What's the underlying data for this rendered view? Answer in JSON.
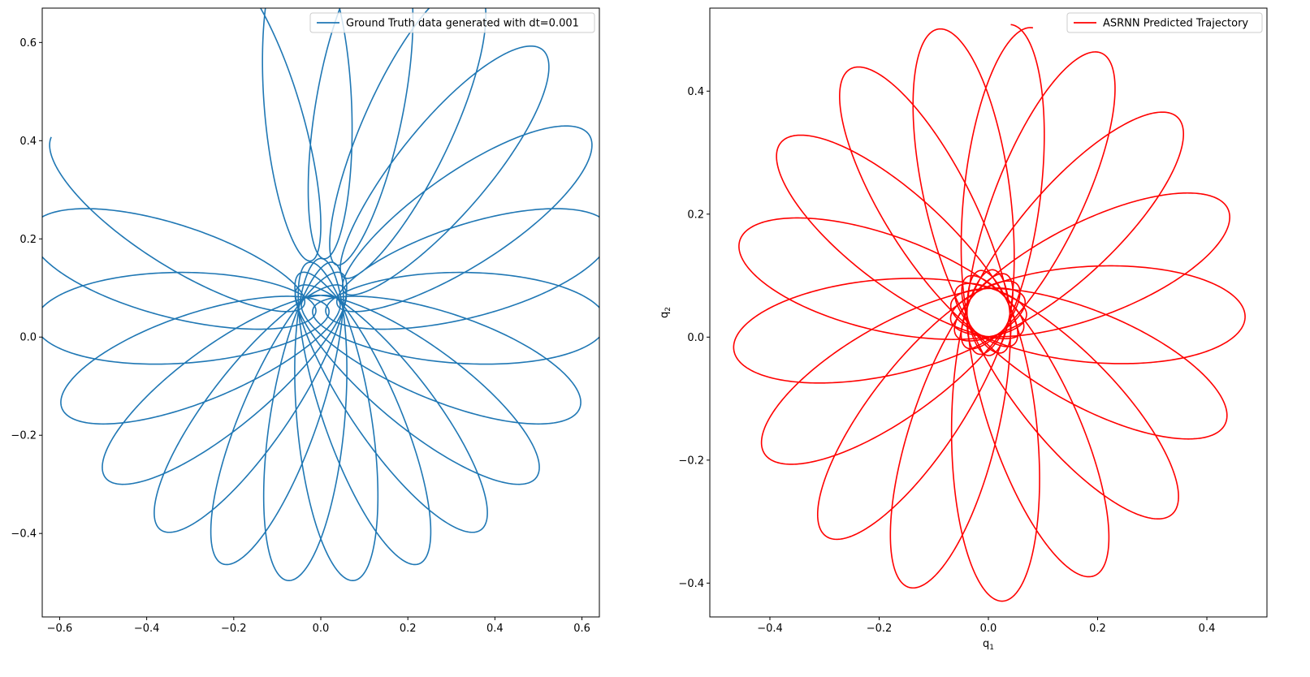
{
  "figure": {
    "background": "#ffffff"
  },
  "chart_data": [
    {
      "type": "line",
      "title": "",
      "xlabel": "",
      "ylabel": "",
      "xlim": [
        -0.64,
        0.64
      ],
      "ylim": [
        -0.57,
        0.67
      ],
      "xticks": [
        -0.6,
        -0.4,
        -0.2,
        0.0,
        0.2,
        0.4,
        0.6
      ],
      "xtick_labels": [
        "−0.6",
        "−0.4",
        "−0.2",
        "0.0",
        "0.2",
        "0.4",
        "0.6"
      ],
      "yticks": [
        -0.4,
        -0.2,
        0.0,
        0.2,
        0.4,
        0.6
      ],
      "ytick_labels": [
        "−0.4",
        "−0.2",
        "0.0",
        "0.2",
        "0.4",
        "0.6"
      ],
      "legend": {
        "position": "upper right"
      },
      "grid": false,
      "series": [
        {
          "name": "Ground Truth data generated with dt=0.001",
          "color": "#1f77b4",
          "model": {
            "kind": "rotating_ellipse",
            "theta_start_deg": 150,
            "theta_end_deg": 470,
            "cycles": 20,
            "a": 0.07,
            "b": 0.33,
            "r_min": 0.22,
            "r_max": 0.44,
            "phase_deg": 0,
            "offset": [
              0.0,
              0.05
            ],
            "start_point": [
              0.085,
              -0.3
            ],
            "end_point": [
              -0.16,
              0.12
            ]
          }
        }
      ]
    },
    {
      "type": "line",
      "title": "",
      "xlabel": "q",
      "xlabel_sub": "1",
      "ylabel": "q",
      "ylabel_sub": "2",
      "xlim": [
        -0.51,
        0.51
      ],
      "ylim": [
        -0.455,
        0.535
      ],
      "xticks": [
        -0.4,
        -0.2,
        0.0,
        0.2,
        0.4
      ],
      "xtick_labels": [
        "−0.4",
        "−0.2",
        "0.0",
        "0.2",
        "0.4"
      ],
      "yticks": [
        -0.4,
        -0.2,
        0.0,
        0.2,
        0.4
      ],
      "ytick_labels": [
        "−0.4",
        "−0.2",
        "0.0",
        "0.2",
        "0.4"
      ],
      "legend": {
        "position": "upper right"
      },
      "grid": false,
      "series": [
        {
          "name": "ASRNN Predicted Trajectory",
          "color": "#ff0000",
          "model": {
            "kind": "rotating_ellipse",
            "theta_start_deg": 80,
            "theta_end_deg": 445,
            "cycles": 17,
            "a": 0.06,
            "b": 0.27,
            "r_min": 0.2,
            "r_max": 0.2,
            "phase_deg": 0,
            "offset": [
              0.0,
              0.04
            ],
            "start_point": null,
            "end_point": null
          }
        }
      ]
    }
  ]
}
